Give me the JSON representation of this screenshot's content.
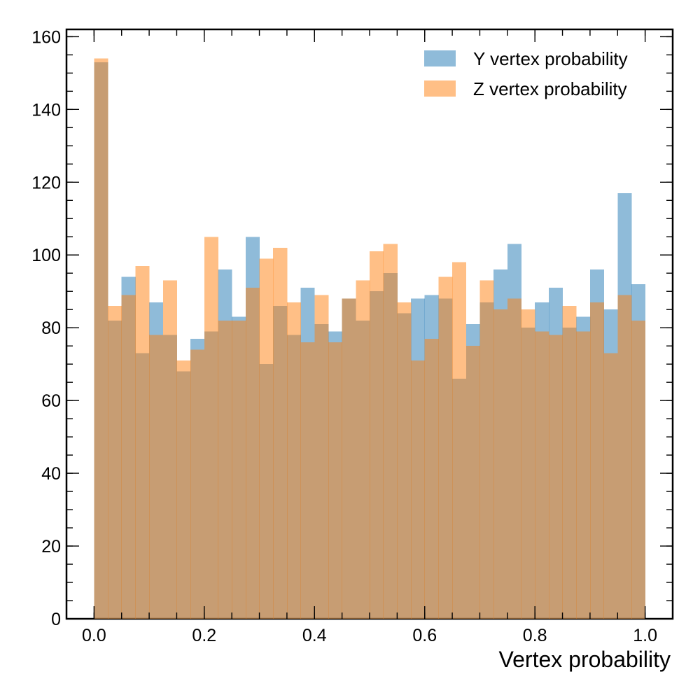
{
  "chart_data": {
    "type": "bar",
    "xlabel": "Vertex probability",
    "ylabel": "",
    "xlim": [
      -0.05,
      1.05
    ],
    "ylim": [
      0,
      162
    ],
    "x_ticks": [
      0.0,
      0.2,
      0.4,
      0.6,
      0.8,
      1.0
    ],
    "x_tick_labels": [
      "0.0",
      "0.2",
      "0.4",
      "0.6",
      "0.8",
      "1.0"
    ],
    "x_minor_step": 0.05,
    "y_ticks": [
      0,
      20,
      40,
      60,
      80,
      100,
      120,
      140,
      160
    ],
    "y_tick_labels": [
      "0",
      "20",
      "40",
      "60",
      "80",
      "100",
      "120",
      "140",
      "160"
    ],
    "y_minor_step": 5,
    "grid": false,
    "legend_position": "top-right",
    "bin_range": [
      0.0,
      1.0
    ],
    "n_bins": 40,
    "series": [
      {
        "name": "Y vertex probability",
        "color": "#1f77b4",
        "alpha": 0.5,
        "values": [
          153,
          82,
          94,
          73,
          87,
          78,
          68,
          77,
          79,
          96,
          83,
          105,
          70,
          86,
          78,
          91,
          81,
          79,
          88,
          82,
          90,
          95,
          84,
          88,
          89,
          88,
          66,
          81,
          87,
          96,
          103,
          80,
          87,
          91,
          80,
          83,
          96,
          85,
          117,
          92
        ]
      },
      {
        "name": "Z vertex probability",
        "color": "#ff7f0e",
        "alpha": 0.5,
        "values": [
          154,
          86,
          89,
          97,
          78,
          93,
          71,
          74,
          105,
          82,
          82,
          91,
          99,
          102,
          87,
          76,
          89,
          76,
          88,
          93,
          101,
          103,
          87,
          71,
          77,
          94,
          98,
          75,
          93,
          85,
          88,
          85,
          79,
          78,
          86,
          79,
          87,
          73,
          89,
          82
        ]
      }
    ]
  }
}
